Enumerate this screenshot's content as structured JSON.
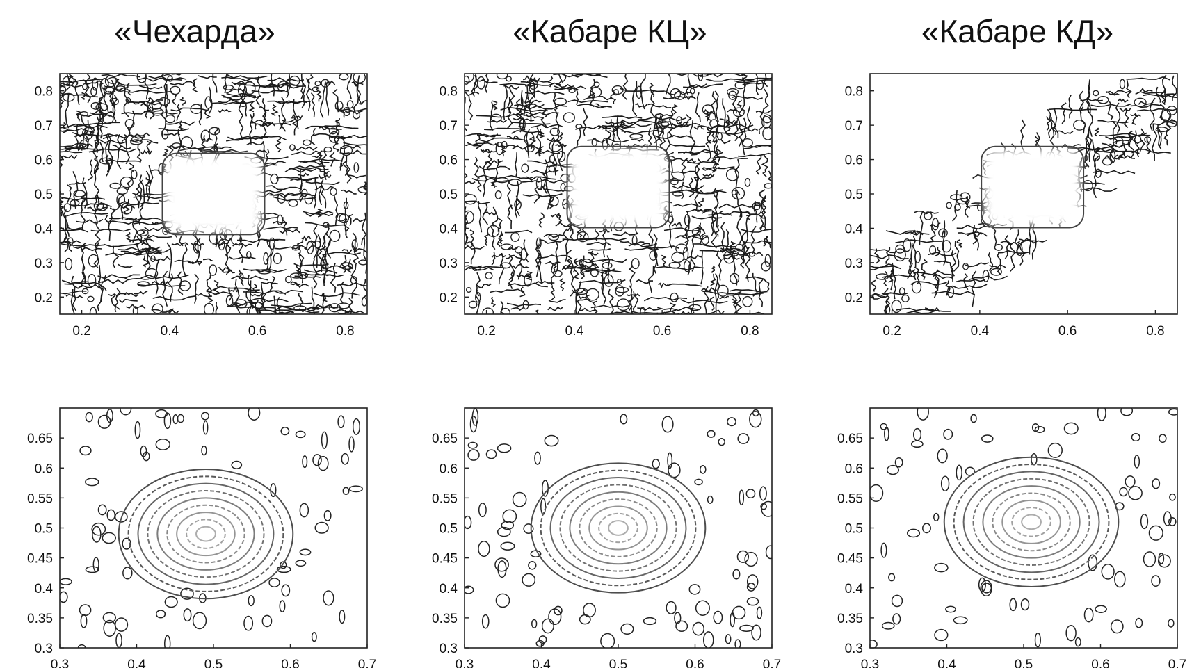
{
  "columns": [
    "«Чехарда»",
    "«Кабаре КЦ»",
    "«Кабаре КД»"
  ],
  "chart_data": [
    {
      "type": "contour",
      "row": "top",
      "column_title": "«Чехарда»",
      "xlim": [
        0.15,
        0.85
      ],
      "ylim": [
        0.15,
        0.85
      ],
      "x_ticks": [
        "0.2",
        "0.4",
        "0.6",
        "0.8"
      ],
      "y_ticks": [
        "0.2",
        "0.3",
        "0.4",
        "0.5",
        "0.6",
        "0.7",
        "0.8"
      ],
      "domain": "full-square",
      "peak": {
        "x": 0.5,
        "y": 0.5,
        "shape": "square"
      },
      "noise": "dense oscillating contours"
    },
    {
      "type": "contour",
      "row": "top",
      "column_title": "«Кабаре КЦ»",
      "xlim": [
        0.15,
        0.85
      ],
      "ylim": [
        0.15,
        0.85
      ],
      "x_ticks": [
        "0.2",
        "0.4",
        "0.6",
        "0.8"
      ],
      "y_ticks": [
        "0.2",
        "0.3",
        "0.4",
        "0.5",
        "0.6",
        "0.7",
        "0.8"
      ],
      "domain": "full-square",
      "peak": {
        "x": 0.5,
        "y": 0.52,
        "shape": "square"
      },
      "noise": "dense oscillating contours"
    },
    {
      "type": "contour",
      "row": "top",
      "column_title": "«Кабаре КД»",
      "xlim": [
        0.15,
        0.85
      ],
      "ylim": [
        0.15,
        0.85
      ],
      "x_ticks": [
        "0.2",
        "0.4",
        "0.6",
        "0.8"
      ],
      "y_ticks": [
        "0.2",
        "0.3",
        "0.4",
        "0.5",
        "0.6",
        "0.7",
        "0.8"
      ],
      "domain": "diagonal-band",
      "peak": {
        "x": 0.52,
        "y": 0.52,
        "shape": "square"
      },
      "noise": "contours confined to diagonal band"
    },
    {
      "type": "contour",
      "row": "bottom",
      "column_title": "«Чехарда»",
      "xlim": [
        0.3,
        0.7
      ],
      "ylim": [
        0.3,
        0.7
      ],
      "x_ticks": [
        "0.3",
        "0.4",
        "0.5",
        "0.6",
        "0.7"
      ],
      "y_ticks": [
        "0.3",
        "0.35",
        "0.4",
        "0.45",
        "0.5",
        "0.55",
        "0.6",
        "0.65"
      ],
      "peak": {
        "x": 0.49,
        "y": 0.49,
        "shape": "round"
      }
    },
    {
      "type": "contour",
      "row": "bottom",
      "column_title": "«Кабаре КЦ»",
      "xlim": [
        0.3,
        0.7
      ],
      "ylim": [
        0.3,
        0.7
      ],
      "x_ticks": [
        "0.3",
        "0.4",
        "0.5",
        "0.6",
        "0.7"
      ],
      "y_ticks": [
        "0.3",
        "0.35",
        "0.4",
        "0.45",
        "0.5",
        "0.55",
        "0.6",
        "0.65"
      ],
      "peak": {
        "x": 0.5,
        "y": 0.5,
        "shape": "round"
      }
    },
    {
      "type": "contour",
      "row": "bottom",
      "column_title": "«Кабаре КД»",
      "xlim": [
        0.3,
        0.7
      ],
      "ylim": [
        0.3,
        0.7
      ],
      "x_ticks": [
        "0.3",
        "0.4",
        "0.5",
        "0.6",
        "0.7"
      ],
      "y_ticks": [
        "0.3",
        "0.35",
        "0.4",
        "0.45",
        "0.5",
        "0.55",
        "0.6",
        "0.65"
      ],
      "peak": {
        "x": 0.51,
        "y": 0.51,
        "shape": "round"
      }
    }
  ]
}
